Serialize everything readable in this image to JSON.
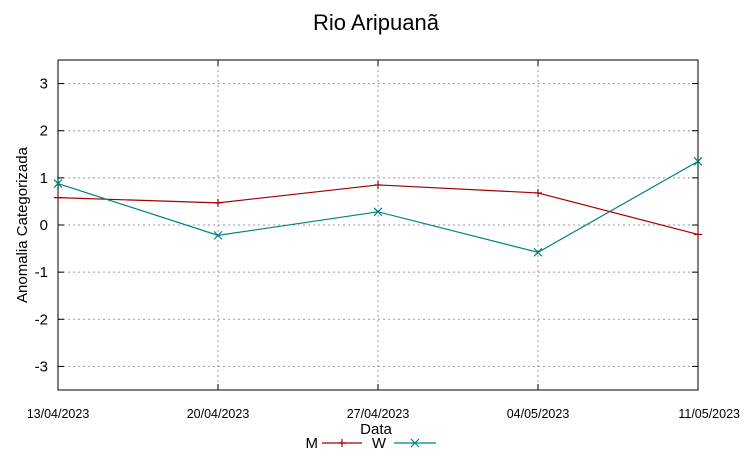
{
  "chart_data": {
    "type": "line",
    "title": "Rio Aripuanã",
    "xlabel": "Data",
    "ylabel": "Anomalia Categorizada",
    "categories": [
      "13/04/2023",
      "20/04/2023",
      "27/04/2023",
      "04/05/2023",
      "11/05/2023"
    ],
    "ylim": [
      -3.5,
      3.5
    ],
    "yticks": [
      -3,
      -2,
      -1,
      0,
      1,
      2,
      3
    ],
    "grid": true,
    "legend_position": "bottom",
    "series": [
      {
        "name": "M",
        "color": "#a00000",
        "marker": "plus",
        "values": [
          0.58,
          0.47,
          0.85,
          0.68,
          -0.2
        ]
      },
      {
        "name": "W",
        "color": "#008080",
        "marker": "cross",
        "values": [
          0.88,
          -0.22,
          0.28,
          -0.58,
          1.35
        ]
      }
    ]
  }
}
